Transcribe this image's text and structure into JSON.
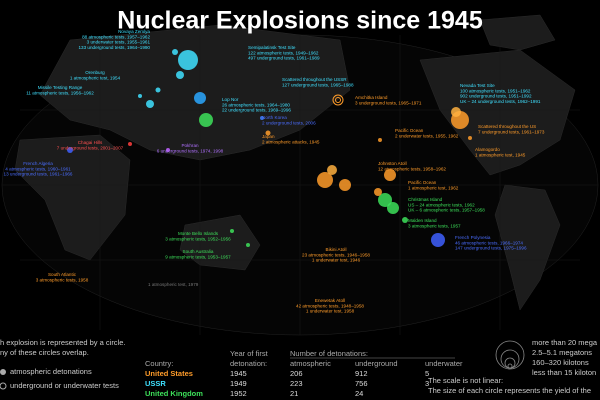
{
  "header": {
    "title": "Nuclear Explosions since 1945"
  },
  "sites": [
    {
      "name": "Novaya Zemlya",
      "lines": [
        "88 atmospheric tests, 1957–1962",
        "3 underwater tests, 1955–1961",
        "133 underground tests, 1964–1990"
      ]
    },
    {
      "name": "Orenburg",
      "lines": [
        "1 atmospheric test, 1954"
      ]
    },
    {
      "name": "Missile Testing Range",
      "lines": [
        "11 atmospheric tests, 1956–1962"
      ]
    },
    {
      "name": "Semipalatinsk Test Site",
      "lines": [
        "122 atmospheric tests, 1949–1962",
        "497 underground tests, 1961–1989"
      ]
    },
    {
      "name": "Scattered throughout the USSR",
      "lines": [
        "127 underground tests, 1965–1988"
      ]
    },
    {
      "name": "Lop Nor",
      "lines": [
        "26 atmospheric tests, 1964–1980",
        "22 underground tests, 1969–1996"
      ]
    },
    {
      "name": "North Korea",
      "lines": [
        "2 underground tests, 2006"
      ]
    },
    {
      "name": "Japan",
      "lines": [
        "2 atmospheric attacks, 1945"
      ]
    },
    {
      "name": "Chagai Hills",
      "lines": [
        "7 underground tests, 2001–2007"
      ]
    },
    {
      "name": "Pokhran",
      "lines": [
        "6 underground tests, 1974, 1998"
      ]
    },
    {
      "name": "French Algeria",
      "lines": [
        "4 atmospheric tests, 1960–1961",
        "13 underground tests, 1961–1966"
      ]
    },
    {
      "name": "Amchitka Island",
      "lines": [
        "3 underground tests, 1965–1971"
      ]
    },
    {
      "name": "Nevada Test Site",
      "lines": [
        "100 atmospheric tests, 1951–1962",
        "902 underground tests, 1951–1992",
        "UK – 24 underground tests, 1962–1991"
      ]
    },
    {
      "name": "Scattered throughout the US",
      "lines": [
        "7 underground tests, 1961–1973"
      ]
    },
    {
      "name": "Alamogordo",
      "lines": [
        "1 atmospheric test, 1945"
      ]
    },
    {
      "name": "Pacific Ocean",
      "lines": [
        "2 underwater tests, 1955, 1962"
      ]
    },
    {
      "name": "Johnston Atoll",
      "lines": [
        "12 atmospheric tests, 1958–1962"
      ]
    },
    {
      "name": "Pacific Ocean",
      "lines": [
        "1 atmospheric test, 1962"
      ]
    },
    {
      "name": "Christmas Island",
      "lines": [
        "US – 24 atmospheric tests, 1962",
        "UK – 6 atmospheric tests, 1957–1958"
      ]
    },
    {
      "name": "Malden Island",
      "lines": [
        "3 atmospheric tests, 1957"
      ]
    },
    {
      "name": "French Polynesia",
      "lines": [
        "46 atmospheric tests, 1966–1974",
        "147 underground tests, 1975–1996"
      ]
    },
    {
      "name": "Bikini Atoll",
      "lines": [
        "23 atmospheric tests, 1946–1958",
        "1 underwater test, 1946"
      ]
    },
    {
      "name": "Enewetak Atoll",
      "lines": [
        "42 atmospheric tests, 1948–1958",
        "1 underwater test, 1958"
      ]
    },
    {
      "name": "Monte Bello Islands",
      "lines": [
        "3 atmospheric tests, 1952–1956"
      ]
    },
    {
      "name": "South Australia",
      "lines": [
        "9 atmospheric tests, 1953–1957"
      ]
    },
    {
      "name": "South Atlantic",
      "lines": [
        "3 atmospheric tests, 1958"
      ]
    },
    {
      "name": "",
      "lines": [
        "1 atmospheric test, 1979"
      ]
    }
  ],
  "legend": {
    "notes": [
      "h explosion is represented by a circle.",
      "ny of these circles overlap."
    ],
    "kinds": [
      "atmospheric detonations",
      "underground or underwater tests"
    ],
    "sizes": [
      "more than 20 mega",
      "2.5–5.1 megatons",
      "160–320 kilotons",
      "less than 15 kiloton"
    ],
    "size_notes": [
      "The size of each circle represents the yield of the",
      "The scale is not linear:"
    ]
  },
  "table": {
    "headers": [
      "Country:",
      "Year of first",
      "detonation:",
      "Number of detonations:",
      "atmospheric",
      "underground",
      "underwater"
    ],
    "rows": [
      [
        "United States",
        1945,
        206,
        912,
        5
      ],
      [
        "USSR",
        1949,
        223,
        756,
        3
      ],
      [
        "United Kingdom",
        1952,
        21,
        24
      ]
    ]
  }
}
